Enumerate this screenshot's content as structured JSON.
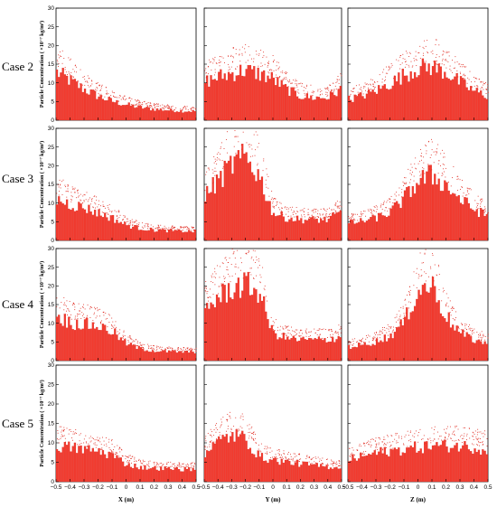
{
  "figure": {
    "y_axis_label": "Particle Concentration ( ×10⁻⁷ kg/m³)",
    "x_axis_labels": [
      "X (m)",
      "Y (m)",
      "Z (m)"
    ],
    "x_ticks": [
      "−0.5",
      "−0.4",
      "−0.3",
      "−0.2",
      "−0.1",
      "0",
      "0.1",
      "0.2",
      "0.3",
      "0.4",
      "0.5"
    ],
    "y_ticks": [
      "0",
      "5",
      "10",
      "15",
      "20",
      "25",
      "30"
    ],
    "row_labels": [
      "Case 2",
      "Case 3",
      "Case 4",
      "Case 5"
    ],
    "colors": {
      "bar": "#f23a2e",
      "bar_edge": "#d72a22",
      "scatter": "#e02a20",
      "axis": "#000000"
    }
  },
  "chart_data": [
    {
      "type": "bar",
      "case": "Case 2",
      "xlabel": "X (m)",
      "ylabel": "Particle Concentration ( ×10⁻⁷ kg/m³)",
      "xlim": [
        -0.5,
        0.5
      ],
      "ylim": [
        0,
        30
      ],
      "series": [
        {
          "x": [
            -0.5,
            -0.4,
            -0.3,
            -0.2,
            -0.1,
            0,
            0.1,
            0.2,
            0.3,
            0.4,
            0.5
          ],
          "values": [
            14,
            11.5,
            9,
            7,
            5.5,
            4.5,
            3.7,
            3.2,
            2.9,
            2.7,
            2.6
          ]
        }
      ]
    },
    {
      "type": "bar",
      "case": "Case 2",
      "xlabel": "Y (m)",
      "ylabel": "Particle Concentration ( ×10⁻⁷ kg/m³)",
      "xlim": [
        -0.5,
        0.5
      ],
      "ylim": [
        0,
        30
      ],
      "series": [
        {
          "x": [
            -0.5,
            -0.4,
            -0.3,
            -0.2,
            -0.1,
            0,
            0.1,
            0.2,
            0.3,
            0.4,
            0.5
          ],
          "values": [
            11,
            12.5,
            13.5,
            14.5,
            13.5,
            12,
            9,
            7,
            6.5,
            6.5,
            9
          ]
        }
      ]
    },
    {
      "type": "bar",
      "case": "Case 2",
      "xlabel": "Z (m)",
      "ylabel": "Particle Concentration ( ×10⁻⁷ kg/m³)",
      "xlim": [
        -0.5,
        0.5
      ],
      "ylim": [
        0,
        30
      ],
      "series": [
        {
          "x": [
            -0.5,
            -0.4,
            -0.3,
            -0.2,
            -0.1,
            0,
            0.1,
            0.2,
            0.3,
            0.4,
            0.5
          ],
          "values": [
            6,
            7,
            8.5,
            10.5,
            13,
            15,
            15.5,
            14,
            11,
            8.5,
            7
          ]
        }
      ]
    },
    {
      "type": "bar",
      "case": "Case 3",
      "xlabel": "X (m)",
      "ylabel": "Particle Concentration ( ×10⁻⁷ kg/m³)",
      "xlim": [
        -0.5,
        0.5
      ],
      "ylim": [
        0,
        30
      ],
      "series": [
        {
          "x": [
            -0.5,
            -0.4,
            -0.3,
            -0.2,
            -0.1,
            0,
            0.1,
            0.2,
            0.3,
            0.4,
            0.5
          ],
          "values": [
            12,
            10.5,
            9.5,
            8,
            6.5,
            4.5,
            3.5,
            3,
            2.8,
            2.7,
            2.6
          ]
        }
      ]
    },
    {
      "type": "bar",
      "case": "Case 3",
      "xlabel": "Y (m)",
      "ylabel": "Particle Concentration ( ×10⁻⁷ kg/m³)",
      "xlim": [
        -0.5,
        0.5
      ],
      "ylim": [
        0,
        30
      ],
      "series": [
        {
          "x": [
            -0.5,
            -0.4,
            -0.3,
            -0.2,
            -0.1,
            0,
            0.1,
            0.2,
            0.3,
            0.4,
            0.5
          ],
          "values": [
            13,
            17,
            22,
            24,
            19,
            8,
            6.5,
            6,
            6,
            6,
            8
          ]
        }
      ]
    },
    {
      "type": "bar",
      "case": "Case 3",
      "xlabel": "Z (m)",
      "ylabel": "Particle Concentration ( ×10⁻⁷ kg/m³)",
      "xlim": [
        -0.5,
        0.5
      ],
      "ylim": [
        0,
        30
      ],
      "series": [
        {
          "x": [
            -0.5,
            -0.4,
            -0.3,
            -0.2,
            -0.1,
            0,
            0.1,
            0.2,
            0.3,
            0.4,
            0.5
          ],
          "values": [
            5,
            5.5,
            6.5,
            8,
            12,
            17,
            19,
            16,
            12,
            9,
            7
          ]
        }
      ]
    },
    {
      "type": "bar",
      "case": "Case 4",
      "xlabel": "X (m)",
      "ylabel": "Particle Concentration ( ×10⁻⁷ kg/m³)",
      "xlim": [
        -0.5,
        0.5
      ],
      "ylim": [
        0,
        30
      ],
      "series": [
        {
          "x": [
            -0.5,
            -0.4,
            -0.3,
            -0.2,
            -0.1,
            0,
            0.1,
            0.2,
            0.3,
            0.4,
            0.5
          ],
          "values": [
            13,
            11,
            10.5,
            10,
            8.5,
            5,
            3.5,
            2.8,
            2.6,
            2.5,
            2.5
          ]
        }
      ]
    },
    {
      "type": "bar",
      "case": "Case 4",
      "xlabel": "Y (m)",
      "ylabel": "Particle Concentration ( ×10⁻⁷ kg/m³)",
      "xlim": [
        -0.5,
        0.5
      ],
      "ylim": [
        0,
        30
      ],
      "series": [
        {
          "x": [
            -0.5,
            -0.4,
            -0.3,
            -0.2,
            -0.1,
            0,
            0.1,
            0.2,
            0.3,
            0.4,
            0.5
          ],
          "values": [
            15,
            18,
            21,
            22,
            20,
            8,
            6.5,
            6,
            6,
            6,
            7
          ]
        }
      ]
    },
    {
      "type": "bar",
      "case": "Case 4",
      "xlabel": "Z (m)",
      "ylabel": "Particle Concentration ( ×10⁻⁷ kg/m³)",
      "xlim": [
        -0.5,
        0.5
      ],
      "ylim": [
        0,
        30
      ],
      "series": [
        {
          "x": [
            -0.5,
            -0.4,
            -0.3,
            -0.2,
            -0.1,
            0,
            0.1,
            0.2,
            0.3,
            0.4,
            0.5
          ],
          "values": [
            4,
            4.5,
            5.5,
            7,
            11,
            20,
            22,
            13,
            8,
            6,
            5
          ]
        }
      ]
    },
    {
      "type": "bar",
      "case": "Case 5",
      "xlabel": "X (m)",
      "ylabel": "Particle Concentration ( ×10⁻⁷ kg/m³)",
      "xlim": [
        -0.5,
        0.5
      ],
      "ylim": [
        0,
        30
      ],
      "series": [
        {
          "x": [
            -0.5,
            -0.4,
            -0.3,
            -0.2,
            -0.1,
            0,
            0.1,
            0.2,
            0.3,
            0.4,
            0.5
          ],
          "values": [
            10,
            9.5,
            9,
            8.5,
            7.5,
            5,
            4,
            3.8,
            3.6,
            3.5,
            3.5
          ]
        }
      ]
    },
    {
      "type": "bar",
      "case": "Case 5",
      "xlabel": "Y (m)",
      "ylabel": "Particle Concentration ( ×10⁻⁷ kg/m³)",
      "xlim": [
        -0.5,
        0.5
      ],
      "ylim": [
        0,
        30
      ],
      "series": [
        {
          "x": [
            -0.5,
            -0.4,
            -0.3,
            -0.2,
            -0.1,
            0,
            0.1,
            0.2,
            0.3,
            0.4,
            0.5
          ],
          "values": [
            8,
            11,
            13,
            12,
            7,
            6,
            5.5,
            5,
            4.5,
            4.2,
            4
          ]
        }
      ]
    },
    {
      "type": "bar",
      "case": "Case 5",
      "xlabel": "Z (m)",
      "ylabel": "Particle Concentration ( ×10⁻⁷ kg/m³)",
      "xlim": [
        -0.5,
        0.5
      ],
      "ylim": [
        0,
        30
      ],
      "series": [
        {
          "x": [
            -0.5,
            -0.4,
            -0.3,
            -0.2,
            -0.1,
            0,
            0.1,
            0.2,
            0.3,
            0.4,
            0.5
          ],
          "values": [
            6,
            7,
            8,
            8.5,
            9,
            9.5,
            10,
            10,
            10,
            9.5,
            9
          ]
        }
      ]
    }
  ]
}
